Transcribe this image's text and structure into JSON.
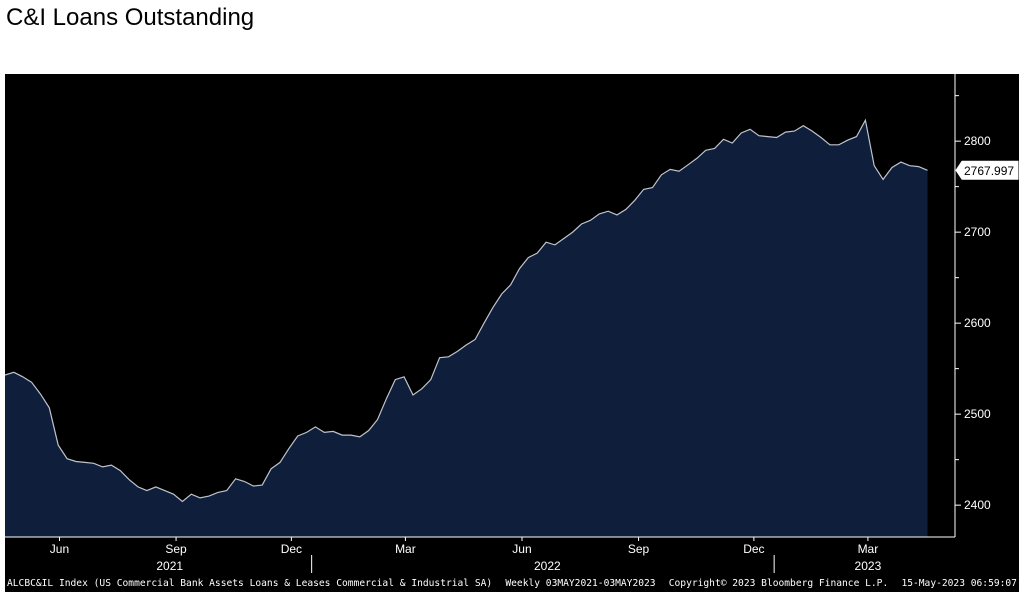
{
  "title": "C&I Loans Outstanding",
  "footer": {
    "ticker": "ALCBC&IL Index (US Commercial Bank Assets Loans & Leases Commercial & Industrial SA)",
    "frequency": "Weekly 03MAY2021-03MAY2023",
    "copyright": "Copyright© 2023 Bloomberg Finance L.P.",
    "timestamp": "15-May-2023 06:59:07"
  },
  "chart_data": {
    "type": "area",
    "title": "C&I Loans Outstanding",
    "xlabel": "",
    "ylabel": "",
    "ylim": [
      2365,
      2865
    ],
    "y_ticks": [
      2400,
      2500,
      2600,
      2700,
      2800
    ],
    "y_tick_labels": [
      "2400",
      "2500",
      "2600",
      "2700",
      "2800"
    ],
    "x_range": [
      "2021-05-03",
      "2023-05-03"
    ],
    "x_month_ticks": [
      {
        "label": "Jun",
        "x": "2021-06-15"
      },
      {
        "label": "Sep",
        "x": "2021-09-15"
      },
      {
        "label": "Dec",
        "x": "2021-12-15"
      },
      {
        "label": "Mar",
        "x": "2022-03-15"
      },
      {
        "label": "Jun",
        "x": "2022-06-15"
      },
      {
        "label": "Sep",
        "x": "2022-09-15"
      },
      {
        "label": "Dec",
        "x": "2022-12-15"
      },
      {
        "label": "Mar",
        "x": "2023-03-15"
      }
    ],
    "x_year_labels": [
      {
        "label": "2021",
        "x": "2021-09-10"
      },
      {
        "label": "2022",
        "x": "2022-07-05"
      },
      {
        "label": "2023",
        "x": "2023-03-15"
      }
    ],
    "x_year_dividers": [
      "2021-12-31",
      "2022-12-31"
    ],
    "last_value": 2767.997,
    "last_value_label": "2767.997",
    "grid": false,
    "legend": "none",
    "series": [
      {
        "color": "#bfc4cc",
        "fill": "#0f1e3a",
        "points": [
          [
            "2021-05-03",
            2543
          ],
          [
            "2021-05-10",
            2546
          ],
          [
            "2021-05-17",
            2541
          ],
          [
            "2021-05-24",
            2535
          ],
          [
            "2021-05-31",
            2522
          ],
          [
            "2021-06-07",
            2507
          ],
          [
            "2021-06-14",
            2466
          ],
          [
            "2021-06-21",
            2451
          ],
          [
            "2021-06-28",
            2448
          ],
          [
            "2021-07-05",
            2447
          ],
          [
            "2021-07-12",
            2446
          ],
          [
            "2021-07-19",
            2442
          ],
          [
            "2021-07-26",
            2444
          ],
          [
            "2021-08-02",
            2438
          ],
          [
            "2021-08-09",
            2428
          ],
          [
            "2021-08-16",
            2420
          ],
          [
            "2021-08-23",
            2416
          ],
          [
            "2021-08-30",
            2420
          ],
          [
            "2021-09-06",
            2416
          ],
          [
            "2021-09-13",
            2412
          ],
          [
            "2021-09-20",
            2404
          ],
          [
            "2021-09-27",
            2412
          ],
          [
            "2021-10-04",
            2408
          ],
          [
            "2021-10-11",
            2410
          ],
          [
            "2021-10-18",
            2414
          ],
          [
            "2021-10-25",
            2416
          ],
          [
            "2021-11-01",
            2429
          ],
          [
            "2021-11-08",
            2426
          ],
          [
            "2021-11-15",
            2421
          ],
          [
            "2021-11-22",
            2422
          ],
          [
            "2021-11-29",
            2440
          ],
          [
            "2021-12-06",
            2447
          ],
          [
            "2021-12-13",
            2462
          ],
          [
            "2021-12-20",
            2476
          ],
          [
            "2021-12-27",
            2480
          ],
          [
            "2022-01-03",
            2486
          ],
          [
            "2022-01-10",
            2480
          ],
          [
            "2022-01-17",
            2481
          ],
          [
            "2022-01-24",
            2477
          ],
          [
            "2022-01-31",
            2477
          ],
          [
            "2022-02-07",
            2475
          ],
          [
            "2022-02-14",
            2482
          ],
          [
            "2022-02-21",
            2494
          ],
          [
            "2022-02-28",
            2517
          ],
          [
            "2022-03-07",
            2538
          ],
          [
            "2022-03-14",
            2541
          ],
          [
            "2022-03-21",
            2521
          ],
          [
            "2022-03-28",
            2528
          ],
          [
            "2022-04-04",
            2538
          ],
          [
            "2022-04-11",
            2562
          ],
          [
            "2022-04-18",
            2563
          ],
          [
            "2022-04-25",
            2569
          ],
          [
            "2022-05-02",
            2576
          ],
          [
            "2022-05-09",
            2582
          ],
          [
            "2022-05-16",
            2600
          ],
          [
            "2022-05-23",
            2617
          ],
          [
            "2022-05-30",
            2632
          ],
          [
            "2022-06-06",
            2642
          ],
          [
            "2022-06-13",
            2660
          ],
          [
            "2022-06-20",
            2672
          ],
          [
            "2022-06-27",
            2677
          ],
          [
            "2022-07-04",
            2689
          ],
          [
            "2022-07-11",
            2686
          ],
          [
            "2022-07-18",
            2693
          ],
          [
            "2022-07-25",
            2700
          ],
          [
            "2022-08-01",
            2709
          ],
          [
            "2022-08-08",
            2713
          ],
          [
            "2022-08-15",
            2720
          ],
          [
            "2022-08-22",
            2723
          ],
          [
            "2022-08-29",
            2719
          ],
          [
            "2022-09-05",
            2725
          ],
          [
            "2022-09-12",
            2735
          ],
          [
            "2022-09-19",
            2747
          ],
          [
            "2022-09-26",
            2749
          ],
          [
            "2022-10-03",
            2763
          ],
          [
            "2022-10-10",
            2769
          ],
          [
            "2022-10-17",
            2767
          ],
          [
            "2022-10-24",
            2774
          ],
          [
            "2022-10-31",
            2781
          ],
          [
            "2022-11-07",
            2790
          ],
          [
            "2022-11-14",
            2792
          ],
          [
            "2022-11-21",
            2802
          ],
          [
            "2022-11-28",
            2798
          ],
          [
            "2022-12-05",
            2809
          ],
          [
            "2022-12-12",
            2813
          ],
          [
            "2022-12-19",
            2806
          ],
          [
            "2022-12-26",
            2805
          ],
          [
            "2023-01-02",
            2804
          ],
          [
            "2023-01-09",
            2810
          ],
          [
            "2023-01-16",
            2811
          ],
          [
            "2023-01-23",
            2817
          ],
          [
            "2023-01-30",
            2811
          ],
          [
            "2023-02-06",
            2804
          ],
          [
            "2023-02-13",
            2796
          ],
          [
            "2023-02-20",
            2796
          ],
          [
            "2023-02-27",
            2801
          ],
          [
            "2023-03-06",
            2805
          ],
          [
            "2023-03-13",
            2823
          ],
          [
            "2023-03-20",
            2773
          ],
          [
            "2023-03-27",
            2758
          ],
          [
            "2023-04-03",
            2771
          ],
          [
            "2023-04-10",
            2777
          ],
          [
            "2023-04-17",
            2773
          ],
          [
            "2023-04-24",
            2772
          ],
          [
            "2023-05-01",
            2767.997
          ]
        ]
      }
    ]
  }
}
